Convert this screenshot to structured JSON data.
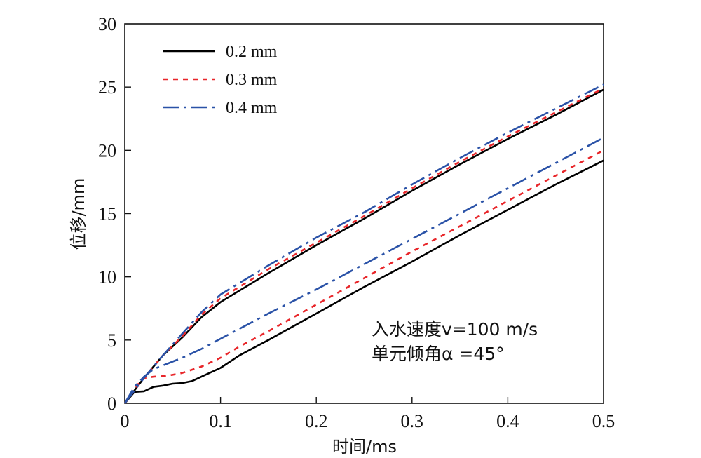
{
  "chart_data": {
    "type": "line",
    "xlabel": "时间/ms",
    "ylabel": "位移/mm",
    "xlim": [
      0,
      0.5
    ],
    "ylim": [
      0,
      30
    ],
    "xticks": [
      0,
      0.1,
      0.2,
      0.3,
      0.4,
      0.5
    ],
    "xtick_labels": [
      "0",
      "0.1",
      "0.2",
      "0.3",
      "0.4",
      "0.5"
    ],
    "yticks": [
      0,
      5,
      10,
      15,
      20,
      25,
      30
    ],
    "ytick_labels": [
      "0",
      "5",
      "10",
      "15",
      "20",
      "25",
      "30"
    ],
    "grid": false,
    "legend_position": "top-left",
    "annotations": [
      "入水速度v=100 m/s",
      "单元倾角α =45°"
    ],
    "series": [
      {
        "name": "0.2 mm",
        "color": "#000000",
        "dash": "solid",
        "upper": {
          "x": [
            0,
            0.02,
            0.04,
            0.06,
            0.08,
            0.1,
            0.15,
            0.2,
            0.25,
            0.3,
            0.35,
            0.4,
            0.45,
            0.5
          ],
          "y": [
            0,
            2.0,
            3.8,
            5.2,
            6.8,
            8.0,
            10.3,
            12.5,
            14.6,
            16.8,
            18.9,
            20.9,
            22.8,
            24.8
          ]
        },
        "lower": {
          "x": [
            0,
            0.01,
            0.02,
            0.03,
            0.04,
            0.05,
            0.06,
            0.07,
            0.08,
            0.1,
            0.12,
            0.15,
            0.2,
            0.25,
            0.3,
            0.35,
            0.4,
            0.45,
            0.5
          ],
          "y": [
            0,
            0.9,
            0.95,
            1.3,
            1.4,
            1.55,
            1.6,
            1.75,
            2.1,
            2.8,
            3.8,
            5.0,
            7.1,
            9.2,
            11.2,
            13.3,
            15.3,
            17.3,
            19.2
          ]
        }
      },
      {
        "name": "0.3 mm",
        "color": "#e8262a",
        "dash": "short",
        "upper": {
          "x": [
            0,
            0.02,
            0.04,
            0.06,
            0.08,
            0.1,
            0.15,
            0.2,
            0.25,
            0.3,
            0.35,
            0.4,
            0.45,
            0.5
          ],
          "y": [
            0,
            2.0,
            3.8,
            5.3,
            7.0,
            8.3,
            10.6,
            12.7,
            14.8,
            17.0,
            19.1,
            21.1,
            23.0,
            24.9
          ]
        },
        "lower": {
          "x": [
            0,
            0.01,
            0.02,
            0.03,
            0.04,
            0.05,
            0.06,
            0.08,
            0.1,
            0.12,
            0.15,
            0.2,
            0.25,
            0.3,
            0.35,
            0.4,
            0.45,
            0.5
          ],
          "y": [
            0,
            1.2,
            2.0,
            2.1,
            2.15,
            2.25,
            2.4,
            2.9,
            3.6,
            4.5,
            5.7,
            7.8,
            9.9,
            12.0,
            14.0,
            16.0,
            18.0,
            20.0
          ]
        }
      },
      {
        "name": "0.4 mm",
        "color": "#2a52a7",
        "dash": "dashdot",
        "upper": {
          "x": [
            0,
            0.02,
            0.04,
            0.06,
            0.08,
            0.1,
            0.15,
            0.2,
            0.25,
            0.3,
            0.35,
            0.4,
            0.45,
            0.5
          ],
          "y": [
            0,
            2.0,
            3.8,
            5.5,
            7.2,
            8.6,
            10.9,
            13.1,
            15.1,
            17.3,
            19.4,
            21.4,
            23.3,
            25.2
          ]
        },
        "lower": {
          "x": [
            0,
            0.01,
            0.02,
            0.03,
            0.04,
            0.05,
            0.06,
            0.08,
            0.1,
            0.12,
            0.15,
            0.2,
            0.25,
            0.3,
            0.35,
            0.4,
            0.45,
            0.5
          ],
          "y": [
            0,
            1.3,
            2.1,
            2.7,
            3.0,
            3.3,
            3.6,
            4.3,
            5.1,
            5.9,
            7.1,
            9.0,
            11.0,
            13.0,
            15.0,
            17.0,
            19.0,
            21.0
          ]
        }
      }
    ]
  }
}
